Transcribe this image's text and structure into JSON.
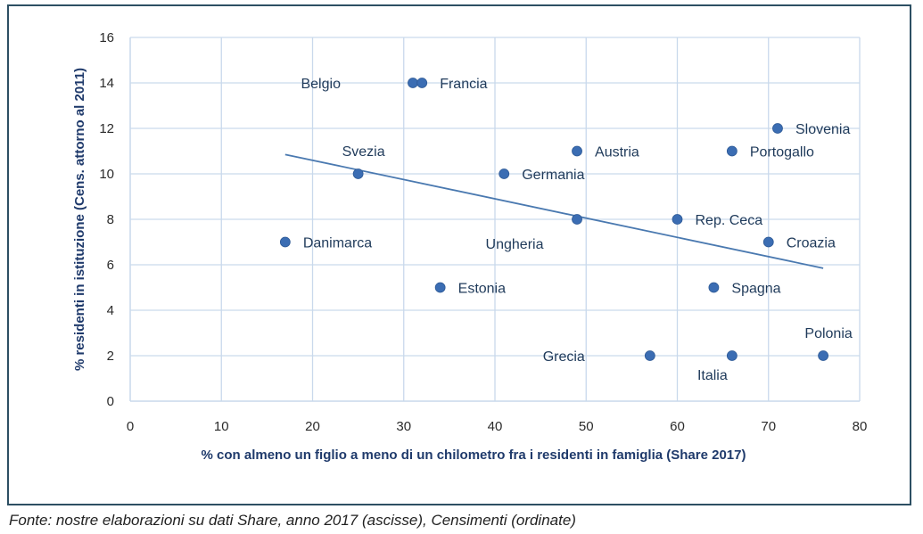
{
  "chart_data": {
    "type": "scatter",
    "xlabel": "% con almeno un figlio a meno di un chilometro fra i residenti in famiglia (Share 2017)",
    "ylabel": "% residenti in istituzione (Cens. attorno al 2011)",
    "xlim": [
      0,
      80
    ],
    "ylim": [
      0,
      16
    ],
    "xticks": [
      0,
      10,
      20,
      30,
      40,
      50,
      60,
      70,
      80
    ],
    "yticks": [
      0,
      2,
      4,
      6,
      8,
      10,
      12,
      14,
      16
    ],
    "grid": true,
    "marker_color": "#3b6db3",
    "trendline": {
      "type": "linear",
      "x": [
        17,
        76
      ],
      "y": [
        10.85,
        5.85
      ],
      "color": "#4a79b0"
    },
    "points": [
      {
        "label": "Belgio",
        "x": 31,
        "y": 14,
        "label_pos": "left"
      },
      {
        "label": "Francia",
        "x": 32,
        "y": 14,
        "label_pos": "right"
      },
      {
        "label": "Svezia",
        "x": 25,
        "y": 10,
        "label_pos": "above"
      },
      {
        "label": "Danimarca",
        "x": 17,
        "y": 7,
        "label_pos": "right"
      },
      {
        "label": "Estonia",
        "x": 34,
        "y": 5,
        "label_pos": "right"
      },
      {
        "label": "Germania",
        "x": 41,
        "y": 10,
        "label_pos": "right"
      },
      {
        "label": "Austria",
        "x": 49,
        "y": 11,
        "label_pos": "right"
      },
      {
        "label": "Ungheria",
        "x": 49,
        "y": 8,
        "label_pos": "below-left"
      },
      {
        "label": "Grecia",
        "x": 57,
        "y": 2,
        "label_pos": "left"
      },
      {
        "label": "Rep. Ceca",
        "x": 60,
        "y": 8,
        "label_pos": "right"
      },
      {
        "label": "Spagna",
        "x": 64,
        "y": 5,
        "label_pos": "right"
      },
      {
        "label": "Portogallo",
        "x": 66,
        "y": 11,
        "label_pos": "right"
      },
      {
        "label": "Italia",
        "x": 66,
        "y": 2,
        "label_pos": "below-left"
      },
      {
        "label": "Croazia",
        "x": 70,
        "y": 7,
        "label_pos": "right"
      },
      {
        "label": "Slovenia",
        "x": 71,
        "y": 12,
        "label_pos": "right"
      },
      {
        "label": "Polonia",
        "x": 76,
        "y": 2,
        "label_pos": "above"
      }
    ]
  },
  "source": "Fonte: nostre elaborazioni su dati Share, anno 2017 (ascisse), Censimenti (ordinate)"
}
